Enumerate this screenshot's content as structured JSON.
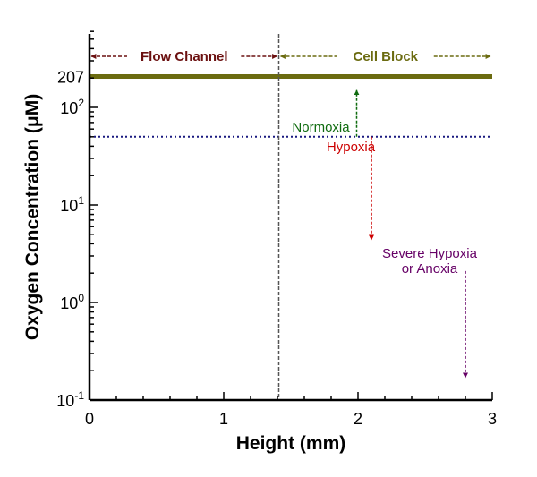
{
  "chart_data": {
    "type": "line",
    "xlabel": "Height (mm)",
    "ylabel": "Oxygen Concentration (μM)",
    "xlim": [
      0,
      3
    ],
    "ylim": [
      0.1,
      600
    ],
    "yscale": "log",
    "grid": false,
    "x_ticks": [
      "0",
      "1",
      "2",
      "3"
    ],
    "y_ticks": [
      {
        "value": 0.1,
        "base": "10",
        "exp": "-1"
      },
      {
        "value": 1,
        "base": "10",
        "exp": "0"
      },
      {
        "value": 10,
        "base": "10",
        "exp": "1"
      },
      {
        "value": 100,
        "base": "10",
        "exp": "2"
      }
    ],
    "extra_y_label": {
      "value": 207,
      "text": "207"
    },
    "lines": [
      {
        "kind": "horizontal",
        "y": 207,
        "color": "#6b6b10",
        "style": "solid"
      },
      {
        "kind": "horizontal",
        "y": 50,
        "color": "#1a1a80",
        "style": "dotted"
      },
      {
        "kind": "vertical",
        "x": 1.41,
        "color": "#555555",
        "style": "dashed"
      }
    ],
    "regions": [
      {
        "label": "Flow Channel",
        "x_from": 0,
        "x_to": 1.41,
        "color": "#6b1010"
      },
      {
        "label": "Cell Block",
        "x_from": 1.41,
        "x_to": 3,
        "color": "#6b6b10"
      }
    ],
    "annotations": [
      {
        "lines": [
          "Normoxia"
        ],
        "color": "#0f6b0f",
        "arrow_x": 1.99,
        "from_y": 50,
        "to_y": 150
      },
      {
        "lines": [
          "Hypoxia"
        ],
        "color": "#cc0000",
        "arrow_x": 2.1,
        "from_y": 50,
        "to_y": 4.4
      },
      {
        "lines": [
          "Severe Hypoxia",
          "or Anoxia"
        ],
        "color": "#660066",
        "arrow_x": 2.8,
        "from_y": 2.1,
        "to_y": 0.17
      }
    ]
  }
}
